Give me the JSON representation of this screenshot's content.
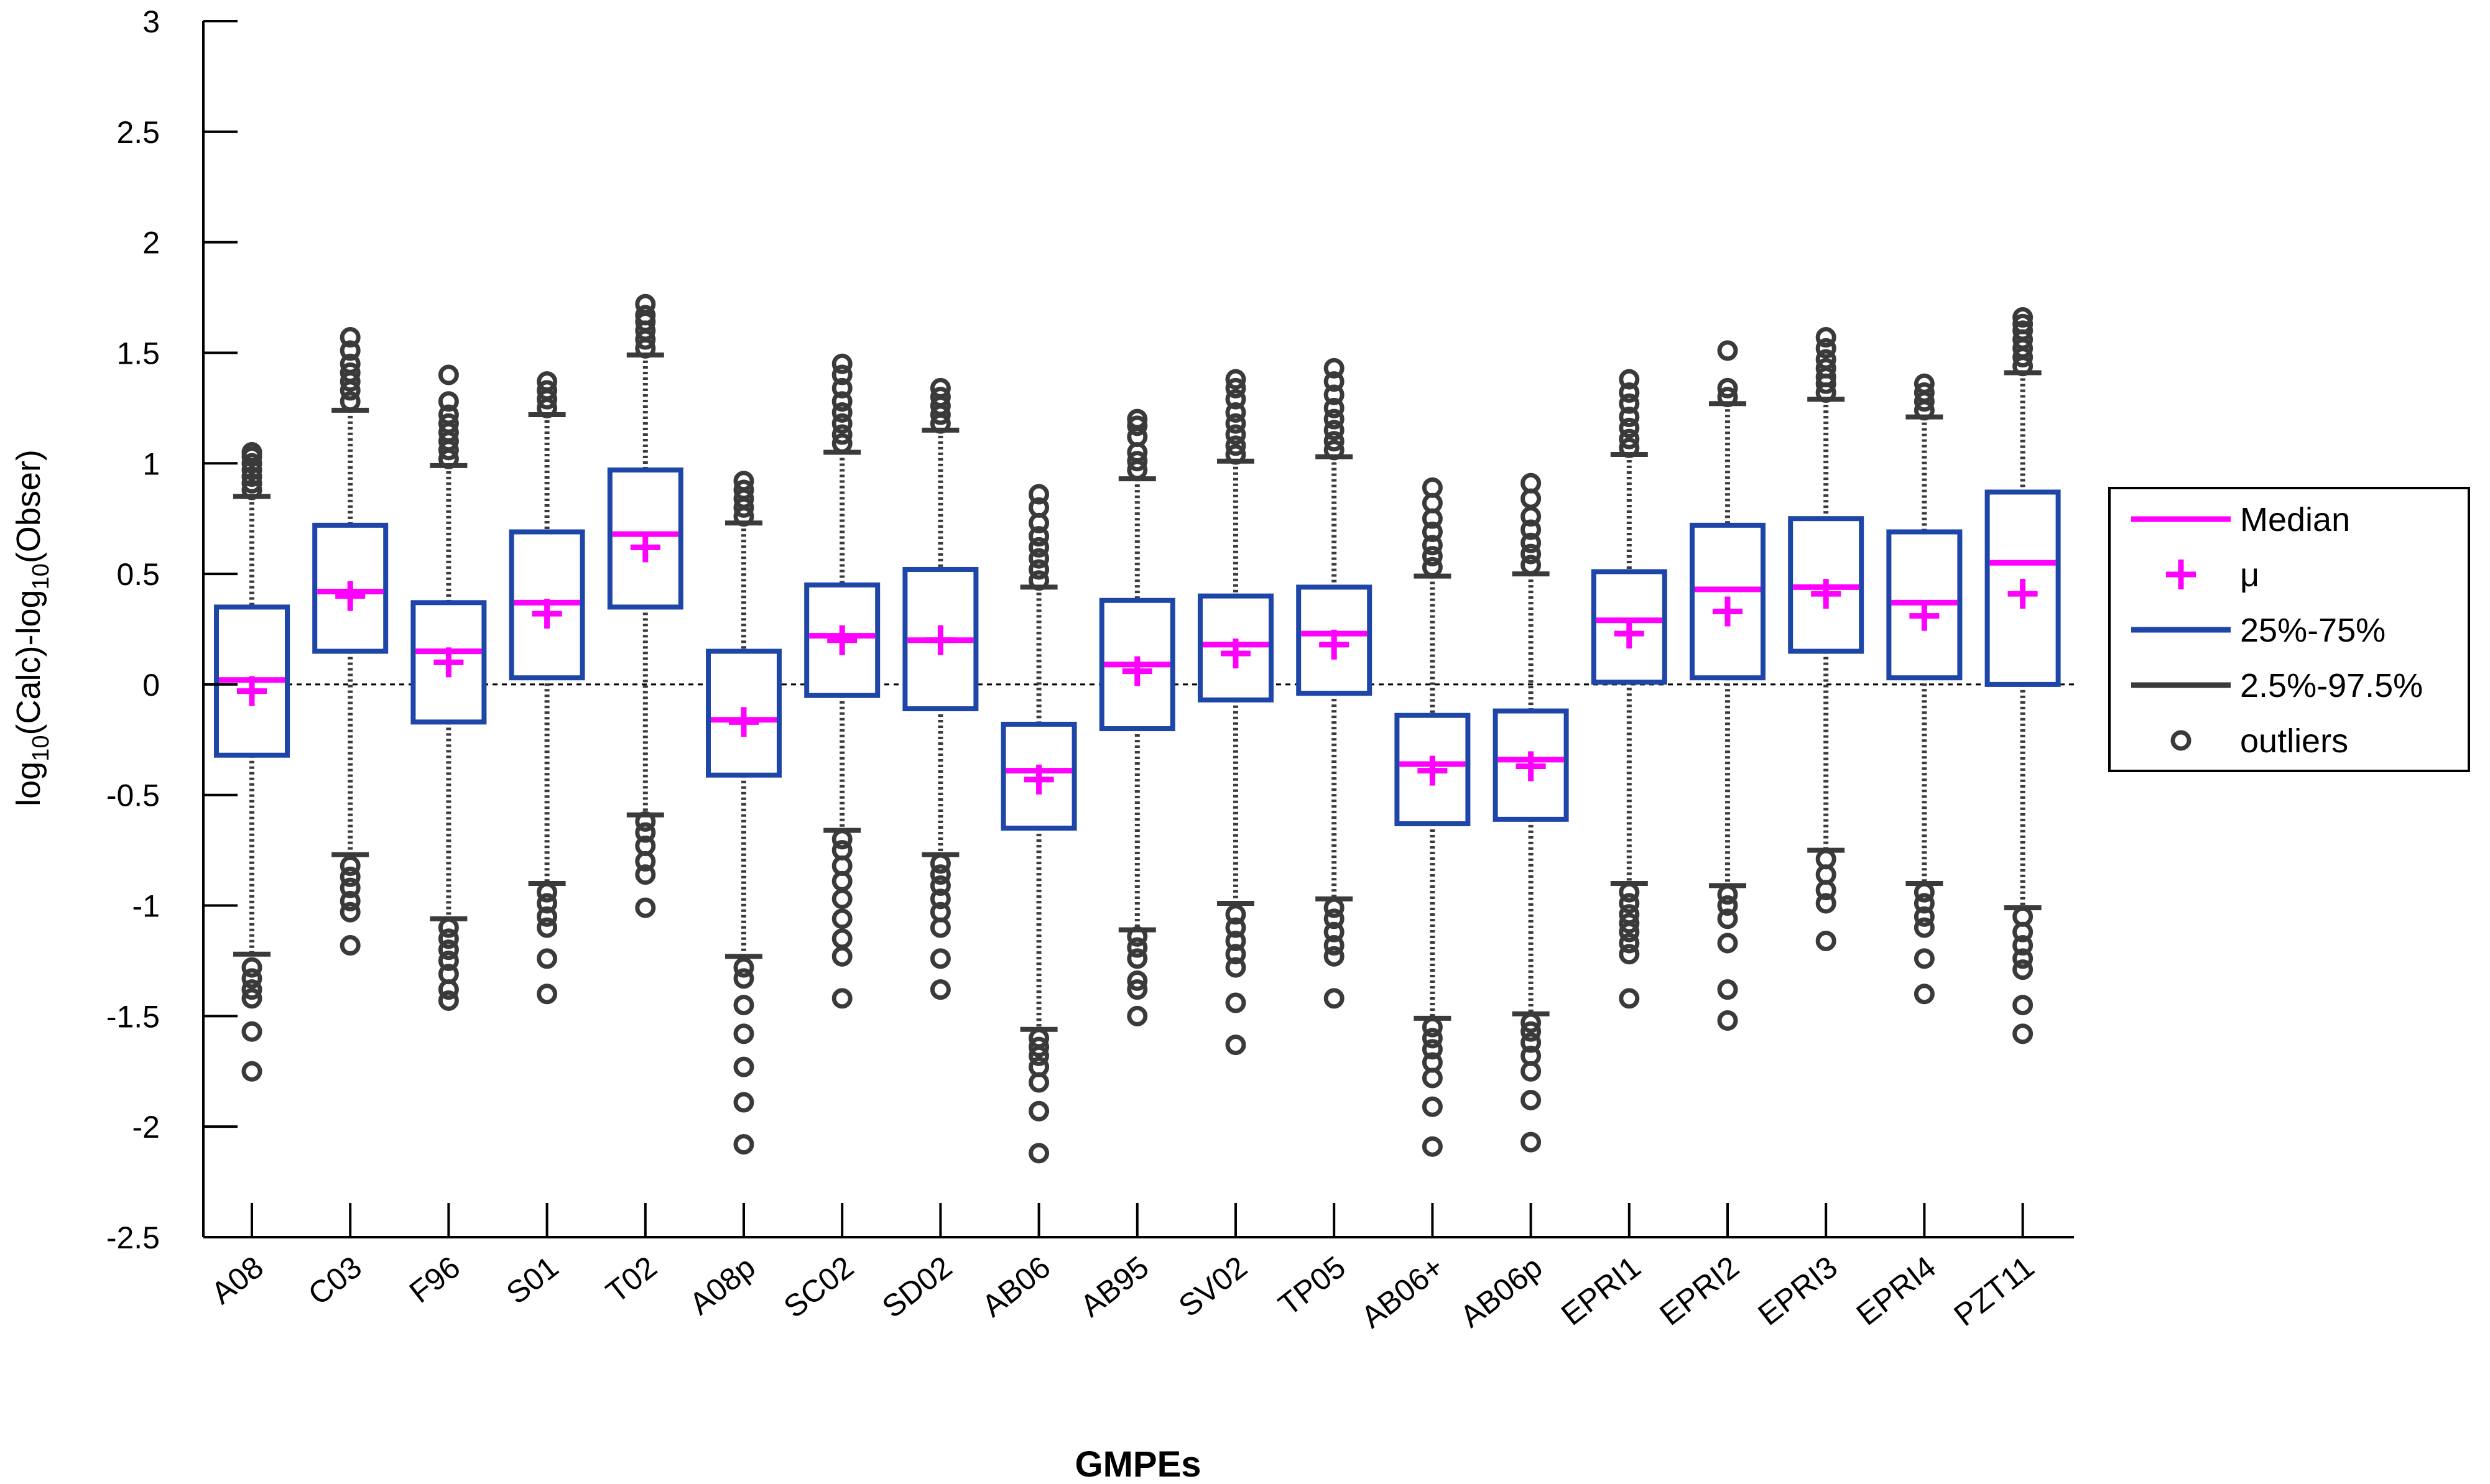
{
  "chart_data": {
    "type": "boxplot",
    "title": "",
    "xlabel": "GMPEs",
    "ylabel": {
      "parts": [
        {
          "text": "log",
          "sub": false
        },
        {
          "text": "10",
          "sub": true
        },
        {
          "text": "(Calc)-log",
          "sub": false
        },
        {
          "text": "10",
          "sub": true
        },
        {
          "text": "(Obser)",
          "sub": false
        }
      ]
    },
    "ylim": [
      -2.5,
      3
    ],
    "yticks": [
      -2.5,
      -2,
      -1.5,
      -1,
      -0.5,
      0,
      0.5,
      1,
      1.5,
      2,
      2.5,
      3
    ],
    "ytick_labels": [
      "-2.5",
      "-2",
      "-1.5",
      "-1",
      "-0.5",
      "0",
      "0.5",
      "1",
      "1.5",
      "2",
      "2.5",
      "3"
    ],
    "reference_line_y": 0,
    "colors": {
      "box": "#1e46a8",
      "median": "#ff00ff",
      "mean": "#ff00ff",
      "whisker": "#3a3a3a",
      "outlier": "#3a3a3a",
      "zero_line": "#000000"
    },
    "legend": {
      "placement": "right",
      "entries": [
        {
          "label": "Median",
          "symbol": "line",
          "color": "#ff00ff"
        },
        {
          "label": "μ",
          "symbol": "plus",
          "color": "#ff00ff"
        },
        {
          "label": "25%-75%",
          "symbol": "line",
          "color": "#1e46a8"
        },
        {
          "label": "2.5%-97.5%",
          "symbol": "line",
          "color": "#3a3a3a"
        },
        {
          "label": "outliers",
          "symbol": "circle",
          "color": "#3a3a3a"
        }
      ]
    },
    "categories": [
      "A08",
      "C03",
      "F96",
      "S01",
      "T02",
      "A08p",
      "SC02",
      "SD02",
      "AB06",
      "AB95",
      "SV02",
      "TP05",
      "AB06+",
      "AB06p",
      "EPRI1",
      "EPRI2",
      "EPRI3",
      "EPRI4",
      "PZT11"
    ],
    "series": [
      {
        "q1": -0.32,
        "median": 0.02,
        "q3": 0.35,
        "mean": -0.03,
        "low": -1.22,
        "high": 0.85,
        "outliers_low": [
          -1.28,
          -1.33,
          -1.38,
          -1.42,
          -1.57,
          -1.75
        ],
        "outliers_high": [
          0.88,
          0.91,
          0.94,
          0.97,
          1.0,
          1.03,
          1.05
        ]
      },
      {
        "q1": 0.15,
        "median": 0.42,
        "q3": 0.72,
        "mean": 0.4,
        "low": -0.77,
        "high": 1.24,
        "outliers_low": [
          -0.82,
          -0.87,
          -0.92,
          -0.98,
          -1.03,
          -1.18
        ],
        "outliers_high": [
          1.28,
          1.33,
          1.37,
          1.41,
          1.45,
          1.51,
          1.57
        ]
      },
      {
        "q1": -0.17,
        "median": 0.15,
        "q3": 0.37,
        "mean": 0.1,
        "low": -1.06,
        "high": 0.99,
        "outliers_low": [
          -1.1,
          -1.15,
          -1.2,
          -1.25,
          -1.31,
          -1.38,
          -1.43
        ],
        "outliers_high": [
          1.02,
          1.06,
          1.1,
          1.14,
          1.18,
          1.22,
          1.28,
          1.4
        ]
      },
      {
        "q1": 0.03,
        "median": 0.37,
        "q3": 0.69,
        "mean": 0.32,
        "low": -0.9,
        "high": 1.22,
        "outliers_low": [
          -0.94,
          -0.99,
          -1.05,
          -1.1,
          -1.24,
          -1.4
        ],
        "outliers_high": [
          1.25,
          1.29,
          1.33,
          1.37
        ]
      },
      {
        "q1": 0.35,
        "median": 0.68,
        "q3": 0.97,
        "mean": 0.62,
        "low": -0.59,
        "high": 1.49,
        "outliers_low": [
          -0.62,
          -0.67,
          -0.73,
          -0.8,
          -0.86,
          -1.01
        ],
        "outliers_high": [
          1.52,
          1.56,
          1.6,
          1.64,
          1.67,
          1.72
        ]
      },
      {
        "q1": -0.41,
        "median": -0.16,
        "q3": 0.15,
        "mean": -0.17,
        "low": -1.23,
        "high": 0.73,
        "outliers_low": [
          -1.28,
          -1.33,
          -1.45,
          -1.58,
          -1.73,
          -1.89,
          -2.08
        ],
        "outliers_high": [
          0.76,
          0.8,
          0.84,
          0.88,
          0.92
        ]
      },
      {
        "q1": -0.05,
        "median": 0.22,
        "q3": 0.45,
        "mean": 0.2,
        "low": -0.66,
        "high": 1.05,
        "outliers_low": [
          -0.7,
          -0.75,
          -0.82,
          -0.89,
          -0.97,
          -1.06,
          -1.15,
          -1.23,
          -1.42
        ],
        "outliers_high": [
          1.09,
          1.13,
          1.18,
          1.23,
          1.28,
          1.34,
          1.4,
          1.45
        ]
      },
      {
        "q1": -0.11,
        "median": 0.2,
        "q3": 0.52,
        "mean": 0.2,
        "low": -0.77,
        "high": 1.15,
        "outliers_low": [
          -0.81,
          -0.86,
          -0.91,
          -0.97,
          -1.03,
          -1.1,
          -1.24,
          -1.38
        ],
        "outliers_high": [
          1.18,
          1.22,
          1.26,
          1.3,
          1.34
        ]
      },
      {
        "q1": -0.65,
        "median": -0.39,
        "q3": -0.18,
        "mean": -0.43,
        "low": -1.56,
        "high": 0.44,
        "outliers_low": [
          -1.6,
          -1.64,
          -1.68,
          -1.73,
          -1.8,
          -1.93,
          -2.12
        ],
        "outliers_high": [
          0.47,
          0.52,
          0.57,
          0.62,
          0.67,
          0.73,
          0.8,
          0.86
        ]
      },
      {
        "q1": -0.2,
        "median": 0.09,
        "q3": 0.38,
        "mean": 0.06,
        "low": -1.11,
        "high": 0.93,
        "outliers_low": [
          -1.14,
          -1.19,
          -1.24,
          -1.34,
          -1.38,
          -1.5
        ],
        "outliers_high": [
          0.97,
          1.01,
          1.05,
          1.12,
          1.17,
          1.2
        ]
      },
      {
        "q1": -0.07,
        "median": 0.18,
        "q3": 0.4,
        "mean": 0.14,
        "low": -0.99,
        "high": 1.01,
        "outliers_low": [
          -1.04,
          -1.1,
          -1.16,
          -1.22,
          -1.28,
          -1.44,
          -1.63
        ],
        "outliers_high": [
          1.04,
          1.08,
          1.13,
          1.18,
          1.23,
          1.29,
          1.34,
          1.38
        ]
      },
      {
        "q1": -0.04,
        "median": 0.23,
        "q3": 0.44,
        "mean": 0.18,
        "low": -0.97,
        "high": 1.03,
        "outliers_low": [
          -1.01,
          -1.06,
          -1.12,
          -1.18,
          -1.23,
          -1.42
        ],
        "outliers_high": [
          1.06,
          1.1,
          1.15,
          1.2,
          1.25,
          1.31,
          1.37,
          1.43
        ]
      },
      {
        "q1": -0.63,
        "median": -0.36,
        "q3": -0.14,
        "mean": -0.39,
        "low": -1.51,
        "high": 0.49,
        "outliers_low": [
          -1.55,
          -1.6,
          -1.65,
          -1.71,
          -1.78,
          -1.91,
          -2.09
        ],
        "outliers_high": [
          0.53,
          0.58,
          0.63,
          0.69,
          0.75,
          0.82,
          0.89
        ]
      },
      {
        "q1": -0.61,
        "median": -0.34,
        "q3": -0.12,
        "mean": -0.37,
        "low": -1.49,
        "high": 0.5,
        "outliers_low": [
          -1.53,
          -1.57,
          -1.62,
          -1.68,
          -1.75,
          -1.88,
          -2.07
        ],
        "outliers_high": [
          0.54,
          0.59,
          0.64,
          0.7,
          0.76,
          0.84,
          0.91
        ]
      },
      {
        "q1": 0.01,
        "median": 0.29,
        "q3": 0.51,
        "mean": 0.23,
        "low": -0.9,
        "high": 1.04,
        "outliers_low": [
          -0.94,
          -0.99,
          -1.04,
          -1.08,
          -1.12,
          -1.17,
          -1.22,
          -1.42
        ],
        "outliers_high": [
          1.07,
          1.11,
          1.16,
          1.21,
          1.27,
          1.32,
          1.38
        ]
      },
      {
        "q1": 0.03,
        "median": 0.43,
        "q3": 0.72,
        "mean": 0.33,
        "low": -0.91,
        "high": 1.27,
        "outliers_low": [
          -0.95,
          -1.0,
          -1.06,
          -1.17,
          -1.38,
          -1.52
        ],
        "outliers_high": [
          1.3,
          1.34,
          1.51
        ]
      },
      {
        "q1": 0.15,
        "median": 0.44,
        "q3": 0.75,
        "mean": 0.41,
        "low": -0.75,
        "high": 1.29,
        "outliers_low": [
          -0.79,
          -0.86,
          -0.93,
          -0.99,
          -1.16
        ],
        "outliers_high": [
          1.32,
          1.36,
          1.39,
          1.43,
          1.47,
          1.52,
          1.57
        ]
      },
      {
        "q1": 0.03,
        "median": 0.37,
        "q3": 0.69,
        "mean": 0.31,
        "low": -0.9,
        "high": 1.21,
        "outliers_low": [
          -0.94,
          -0.99,
          -1.05,
          -1.1,
          -1.24,
          -1.4
        ],
        "outliers_high": [
          1.24,
          1.28,
          1.32,
          1.36
        ]
      },
      {
        "q1": 0.0,
        "median": 0.55,
        "q3": 0.87,
        "mean": 0.41,
        "low": -1.01,
        "high": 1.41,
        "outliers_low": [
          -1.05,
          -1.12,
          -1.18,
          -1.24,
          -1.29,
          -1.45,
          -1.58
        ],
        "outliers_high": [
          1.44,
          1.48,
          1.52,
          1.56,
          1.6,
          1.63,
          1.66
        ]
      }
    ]
  }
}
